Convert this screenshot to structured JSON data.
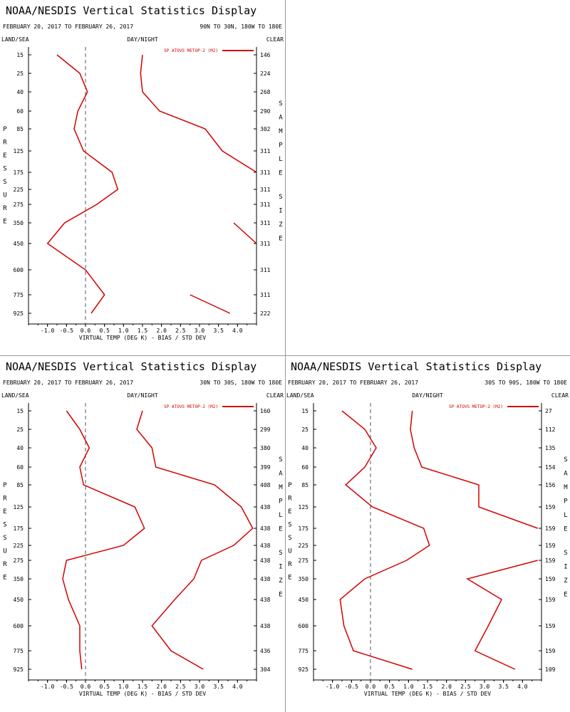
{
  "colors": {
    "series": "#d40000",
    "text": "#000000"
  },
  "chart_data": [
    {
      "type": "line",
      "title": "NOAA/NESDIS Vertical Statistics Display",
      "date_range": "FEBRUARY 20, 2017 TO FEBRUARY 26, 2017",
      "region": "90N TO 30N, 180W TO 180E",
      "left_header": "LAND/SEA",
      "mid_header": "DAY/NIGHT",
      "right_header": "CLEAR",
      "ylabel": "PRESSURE",
      "right_label": "SAMPLE SIZE",
      "xlabel": "VIRTUAL TEMP (DEG K) - BIAS / STD DEV",
      "legend": "SP ATOVS METOP-2 (M2)",
      "xlim": [
        -1.5,
        4.5
      ],
      "x_ticks": [
        "-1.0",
        "-0.5",
        "0.0",
        "0.5",
        "1.0",
        "1.5",
        "2.0",
        "2.5",
        "3.0",
        "3.5",
        "4.0"
      ],
      "pressure_levels": [
        "15",
        "25",
        "40",
        "60",
        "85",
        "125",
        "175",
        "225",
        "275",
        "350",
        "450",
        "600",
        "775",
        "925"
      ],
      "sample_size": [
        "146",
        "224",
        "268",
        "290",
        "302",
        "311",
        "311",
        "311",
        "311",
        "311",
        "311",
        "311",
        "311",
        "222"
      ],
      "series": [
        {
          "name": "Bias",
          "values": [
            -0.75,
            -0.15,
            0.05,
            -0.2,
            -0.3,
            -0.05,
            0.7,
            0.85,
            0.3,
            -0.55,
            -1.0,
            0.0,
            0.5,
            0.15
          ]
        },
        {
          "name": "Std Dev",
          "values": [
            1.5,
            1.45,
            1.5,
            1.95,
            3.15,
            3.6,
            4.5,
            null,
            null,
            3.9,
            4.5,
            null,
            2.75,
            3.8
          ]
        }
      ]
    },
    {
      "type": "line",
      "title": "NOAA/NESDIS Vertical Statistics Display",
      "date_range": "FEBRUARY 20, 2017 TO FEBRUARY 26, 2017",
      "region": "30N TO 30S, 180W TO 180E",
      "left_header": "LAND/SEA",
      "mid_header": "DAY/NIGHT",
      "right_header": "CLEAR",
      "ylabel": "PRESSURE",
      "right_label": "SAMPLE SIZE",
      "xlabel": "VIRTUAL TEMP (DEG K) - BIAS / STD DEV",
      "legend": "SP ATOVS METOP-2 (M2)",
      "xlim": [
        -1.5,
        4.5
      ],
      "x_ticks": [
        "-1.0",
        "-0.5",
        "0.0",
        "0.5",
        "1.0",
        "1.5",
        "2.0",
        "2.5",
        "3.0",
        "3.5",
        "4.0"
      ],
      "pressure_levels": [
        "15",
        "25",
        "40",
        "60",
        "85",
        "125",
        "175",
        "225",
        "275",
        "350",
        "450",
        "600",
        "775",
        "925"
      ],
      "sample_size": [
        "160",
        "299",
        "380",
        "399",
        "408",
        "438",
        "438",
        "438",
        "438",
        "438",
        "438",
        "438",
        "436",
        "304"
      ],
      "series": [
        {
          "name": "Bias",
          "values": [
            -0.5,
            -0.15,
            0.1,
            -0.15,
            -0.05,
            1.3,
            1.55,
            1.0,
            -0.5,
            -0.6,
            -0.45,
            -0.15,
            -0.15,
            -0.1
          ]
        },
        {
          "name": "Std Dev",
          "values": [
            1.5,
            1.35,
            1.75,
            1.85,
            3.4,
            4.1,
            4.4,
            3.9,
            3.05,
            2.85,
            2.35,
            1.75,
            2.25,
            3.1
          ]
        }
      ]
    },
    {
      "type": "line",
      "title": "NOAA/NESDIS Vertical Statistics Display",
      "date_range": "FEBRUARY 20, 2017 TO FEBRUARY 26, 2017",
      "region": "30S TO 90S, 180W TO 180E",
      "left_header": "LAND/SEA",
      "mid_header": "DAY/NIGHT",
      "right_header": "CLEAR",
      "ylabel": "PRESSURE",
      "right_label": "SAMPLE SIZE",
      "xlabel": "VIRTUAL TEMP (DEG K) - BIAS / STD DEV",
      "legend": "SP ATOVS METOP-2 (M2)",
      "xlim": [
        -1.5,
        4.5
      ],
      "x_ticks": [
        "-1.0",
        "-0.5",
        "0.0",
        "0.5",
        "1.0",
        "1.5",
        "2.0",
        "2.5",
        "3.0",
        "3.5",
        "4.0"
      ],
      "pressure_levels": [
        "15",
        "25",
        "40",
        "60",
        "85",
        "125",
        "175",
        "225",
        "275",
        "350",
        "450",
        "600",
        "775",
        "925"
      ],
      "sample_size": [
        "27",
        "112",
        "135",
        "154",
        "156",
        "159",
        "159",
        "159",
        "159",
        "159",
        "159",
        "159",
        "159",
        "109"
      ],
      "series": [
        {
          "name": "Bias",
          "values": [
            -0.75,
            -0.15,
            0.15,
            -0.15,
            -0.65,
            0.05,
            1.4,
            1.55,
            0.95,
            -0.15,
            -0.8,
            -0.7,
            -0.45,
            1.1
          ]
        },
        {
          "name": "Std Dev",
          "values": [
            1.1,
            1.05,
            1.15,
            1.35,
            2.85,
            2.85,
            4.4,
            null,
            4.4,
            2.55,
            3.45,
            3.1,
            2.75,
            3.8
          ]
        }
      ]
    }
  ]
}
